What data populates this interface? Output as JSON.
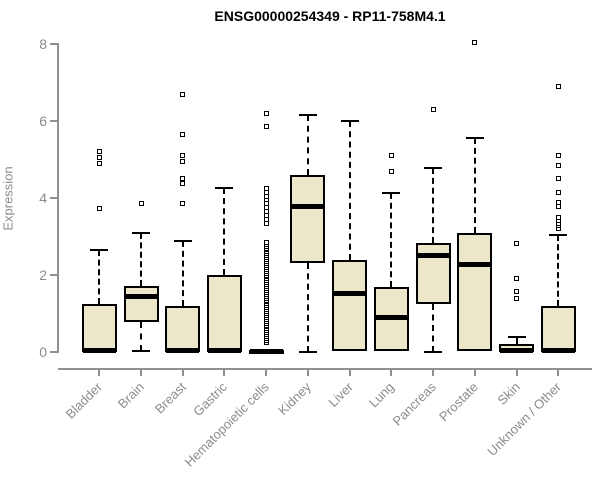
{
  "title": "ENSG00000254349 - RP11-758M4.1",
  "colors": {
    "box_fill": "#ECE6CA",
    "box_border": "#000000",
    "axis": "#909090",
    "text_gray": "#8C8C8C",
    "title_color": "#000000"
  },
  "chart_data": {
    "type": "boxplot",
    "title": "ENSG00000254349 - RP11-758M4.1",
    "xlabel": "",
    "ylabel": "Expression",
    "ylim": [
      0,
      8
    ],
    "yticks": [
      0,
      2,
      4,
      6,
      8
    ],
    "grid": false,
    "legend": null,
    "categories": [
      "Bladder",
      "Brain",
      "Breast",
      "Gastric",
      "Hematopoietic cells",
      "Kidney",
      "Liver",
      "Lung",
      "Pancreas",
      "Prostate",
      "Skin",
      "Unknown / Other"
    ],
    "boxes": [
      {
        "category": "Bladder",
        "whisker_low": 0,
        "q1": 0,
        "median": 0.05,
        "q3": 1.25,
        "whisker_high": 2.65,
        "outliers": [
          3.72,
          4.9,
          5.05,
          5.22
        ]
      },
      {
        "category": "Brain",
        "whisker_low": 0.03,
        "q1": 0.78,
        "median": 1.43,
        "q3": 1.72,
        "whisker_high": 3.1,
        "outliers": [
          3.85
        ]
      },
      {
        "category": "Breast",
        "whisker_low": 0,
        "q1": 0,
        "median": 0.05,
        "q3": 1.2,
        "whisker_high": 2.88,
        "outliers": [
          3.85,
          4.38,
          4.5,
          4.95,
          5.1,
          5.65,
          6.7
        ]
      },
      {
        "category": "Gastric",
        "whisker_low": 0,
        "q1": 0,
        "median": 0.05,
        "q3": 2.0,
        "whisker_high": 4.25,
        "outliers": []
      },
      {
        "category": "Hematopoietic cells",
        "whisker_low": 0,
        "q1": 0,
        "median": 0.02,
        "q3": 0.06,
        "whisker_high": 0.08,
        "outliers": [
          0.25,
          0.3,
          0.35,
          0.4,
          0.45,
          0.5,
          0.55,
          0.6,
          0.65,
          0.7,
          0.75,
          0.8,
          0.85,
          0.9,
          0.95,
          1.0,
          1.05,
          1.1,
          1.15,
          1.2,
          1.25,
          1.3,
          1.35,
          1.4,
          1.45,
          1.5,
          1.55,
          1.6,
          1.65,
          1.7,
          1.75,
          1.8,
          1.85,
          1.9,
          1.95,
          2.0,
          2.05,
          2.1,
          2.15,
          2.2,
          2.25,
          2.3,
          2.35,
          2.4,
          2.45,
          2.5,
          2.55,
          2.6,
          2.65,
          2.7,
          2.75,
          2.8,
          2.85,
          3.35,
          3.45,
          3.55,
          3.65,
          3.75,
          3.85,
          3.95,
          4.05,
          4.15,
          4.25,
          5.85,
          6.2
        ]
      },
      {
        "category": "Kidney",
        "whisker_low": 0,
        "q1": 2.3,
        "median": 3.78,
        "q3": 4.6,
        "whisker_high": 6.15,
        "outliers": []
      },
      {
        "category": "Liver",
        "whisker_low": 0.02,
        "q1": 0.02,
        "median": 1.52,
        "q3": 2.4,
        "whisker_high": 6.0,
        "outliers": []
      },
      {
        "category": "Lung",
        "whisker_low": 0.02,
        "q1": 0.02,
        "median": 0.9,
        "q3": 1.7,
        "whisker_high": 4.12,
        "outliers": [
          4.68,
          5.1
        ]
      },
      {
        "category": "Pancreas",
        "whisker_low": 0,
        "q1": 1.25,
        "median": 2.5,
        "q3": 2.82,
        "whisker_high": 4.78,
        "outliers": [
          6.3
        ]
      },
      {
        "category": "Prostate",
        "whisker_low": 0.03,
        "q1": 0.03,
        "median": 2.27,
        "q3": 3.1,
        "whisker_high": 5.55,
        "outliers": [
          8.05
        ]
      },
      {
        "category": "Skin",
        "whisker_low": 0,
        "q1": 0,
        "median": 0.04,
        "q3": 0.2,
        "whisker_high": 0.38,
        "outliers": [
          1.4,
          1.58,
          1.9,
          2.83
        ]
      },
      {
        "category": "Unknown / Other",
        "whisker_low": 0,
        "q1": 0,
        "median": 0.05,
        "q3": 1.2,
        "whisker_high": 3.05,
        "outliers": [
          3.22,
          3.28,
          3.35,
          3.42,
          3.5,
          3.78,
          3.88,
          4.15,
          4.5,
          4.85,
          5.1,
          6.9
        ]
      }
    ]
  }
}
